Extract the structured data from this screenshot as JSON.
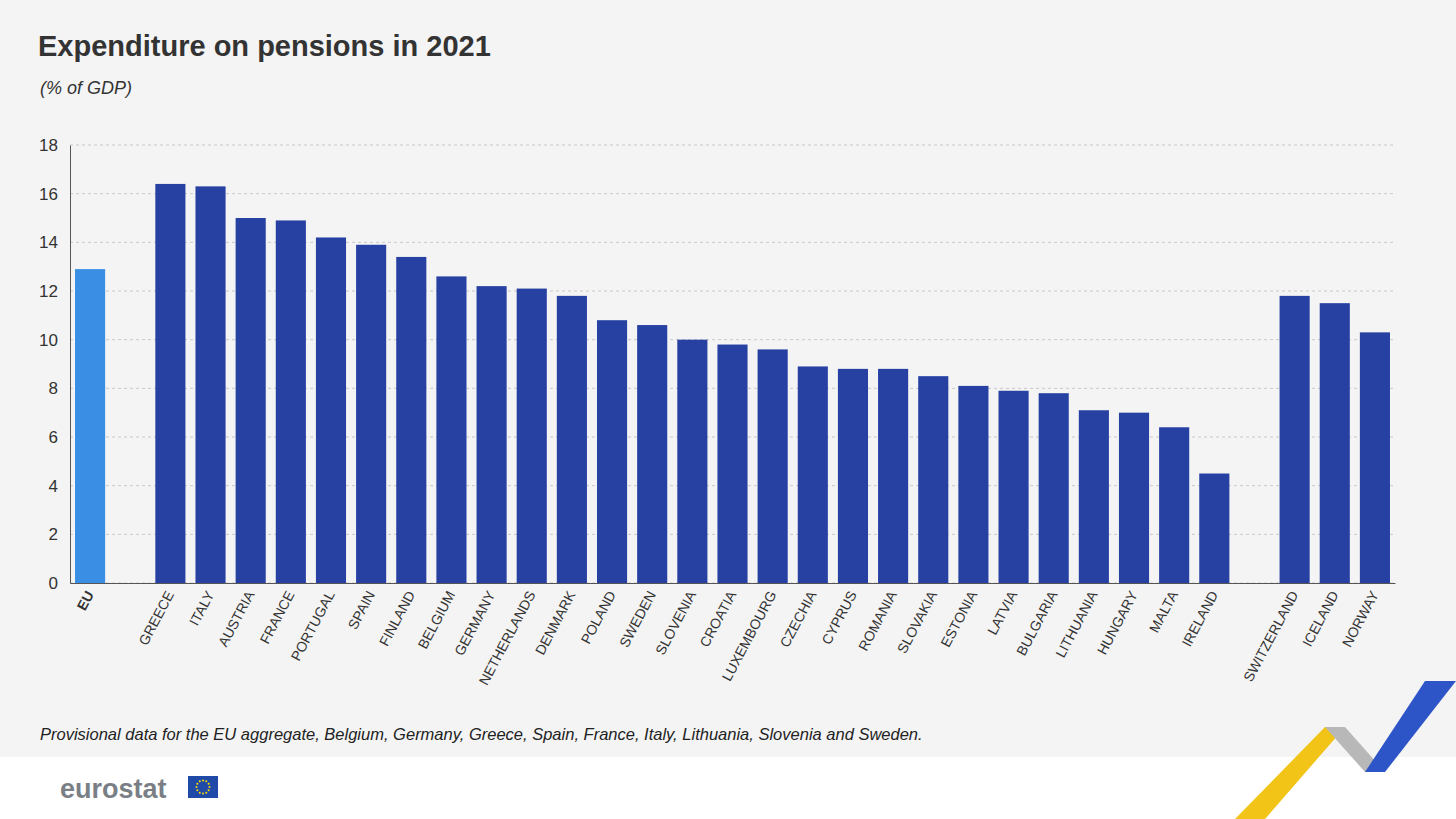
{
  "chart_data": {
    "type": "bar",
    "title": "Expenditure on pensions in 2021",
    "subtitle": "(% of GDP)",
    "annotations": [
      "Provisional data for the EU aggregate, Belgium, Germany, Greece, Spain, France, Italy, Lithuania, Slovenia and Sweden.",
      "eurostat"
    ],
    "categories": [
      "EU",
      null,
      "GREECE",
      "ITALY",
      "AUSTRIA",
      "FRANCE",
      "PORTUGAL",
      "SPAIN",
      "FINLAND",
      "BELGIUM",
      "GERMANY",
      "NETHERLANDS",
      "DENMARK",
      "POLAND",
      "SWEDEN",
      "SLOVENIA",
      "CROATIA",
      "LUXEMBOURG",
      "CZECHIA",
      "CYPRUS",
      "ROMANIA",
      "SLOVAKIA",
      "ESTONIA",
      "LATVIA",
      "BULGARIA",
      "LITHUANIA",
      "HUNGARY",
      "MALTA",
      "IRELAND",
      null,
      "SWITZERLAND",
      "ICELAND",
      "NORWAY"
    ],
    "values": [
      12.9,
      null,
      16.4,
      16.3,
      15.0,
      14.9,
      14.2,
      13.9,
      13.4,
      12.6,
      12.2,
      12.1,
      11.8,
      10.8,
      10.6,
      10.0,
      9.8,
      9.6,
      8.9,
      8.8,
      8.8,
      8.5,
      8.1,
      7.9,
      7.8,
      7.1,
      7.0,
      6.4,
      4.5,
      null,
      11.8,
      11.5,
      10.3
    ],
    "colors": [
      "#3a8fe4",
      null,
      "#2741a3",
      "#2741a3",
      "#2741a3",
      "#2741a3",
      "#2741a3",
      "#2741a3",
      "#2741a3",
      "#2741a3",
      "#2741a3",
      "#2741a3",
      "#2741a3",
      "#2741a3",
      "#2741a3",
      "#2741a3",
      "#2741a3",
      "#2741a3",
      "#2741a3",
      "#2741a3",
      "#2741a3",
      "#2741a3",
      "#2741a3",
      "#2741a3",
      "#2741a3",
      "#2741a3",
      "#2741a3",
      "#2741a3",
      "#2741a3",
      null,
      "#2741a3",
      "#2741a3",
      "#2741a3"
    ],
    "ylim": [
      0,
      18
    ],
    "yticks": [
      0,
      2,
      4,
      6,
      8,
      10,
      12,
      14,
      16,
      18
    ],
    "grid": true
  }
}
